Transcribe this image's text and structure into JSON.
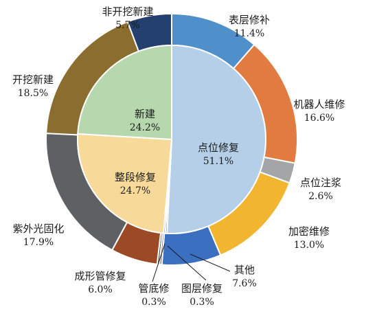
{
  "chart_data": {
    "type": "pie",
    "variant": "nested-donut",
    "inner_ring": [
      {
        "label": "点位修复",
        "value_label": "51.1%",
        "value": 51.1,
        "color": "#b4cfe7"
      },
      {
        "label": "管底修",
        "value_label": "",
        "value": 0.3,
        "color": "#4a4a4a"
      },
      {
        "label": "图层修复",
        "value_label": "",
        "value": 0.3,
        "color": "#7a7a7a"
      },
      {
        "label": "整段修复",
        "value_label": "24.7%",
        "value": 24.7,
        "color": "#f7d99a"
      },
      {
        "label": "新建",
        "value_label": "24.2%",
        "value": 24.2,
        "color": "#b7d8ae"
      }
    ],
    "outer_ring": [
      {
        "label": "表层修补",
        "value_label": "11.4%",
        "value": 11.4,
        "color": "#4f8fca"
      },
      {
        "label": "机器人维修",
        "value_label": "16.6%",
        "value": 16.6,
        "color": "#e27b40"
      },
      {
        "label": "点位注浆",
        "value_label": "2.6%",
        "value": 2.6,
        "color": "#a4a5a6"
      },
      {
        "label": "加密维修",
        "value_label": "13.0%",
        "value": 13.0,
        "color": "#f2b530"
      },
      {
        "label": "其他",
        "value_label": "7.6%",
        "value": 7.6,
        "color": "#3b6fc0"
      },
      {
        "label": "图层修复",
        "value_label": "0.3%",
        "value": 0.3,
        "color": "#7a7a7a"
      },
      {
        "label": "管底修",
        "value_label": "0.3%",
        "value": 0.3,
        "color": "#4a4a4a"
      },
      {
        "label": "成形管修复",
        "value_label": "6.0%",
        "value": 6.0,
        "color": "#9c4a25"
      },
      {
        "label": "紫外光固化",
        "value_label": "17.9%",
        "value": 17.9,
        "color": "#5f6063"
      },
      {
        "label": "开挖新建",
        "value_label": "18.5%",
        "value": 18.5,
        "color": "#8a6d2f"
      },
      {
        "label": "非开挖新建",
        "value_label": "5.7%",
        "value": 5.7,
        "color": "#24406e"
      }
    ],
    "legend": "none"
  }
}
